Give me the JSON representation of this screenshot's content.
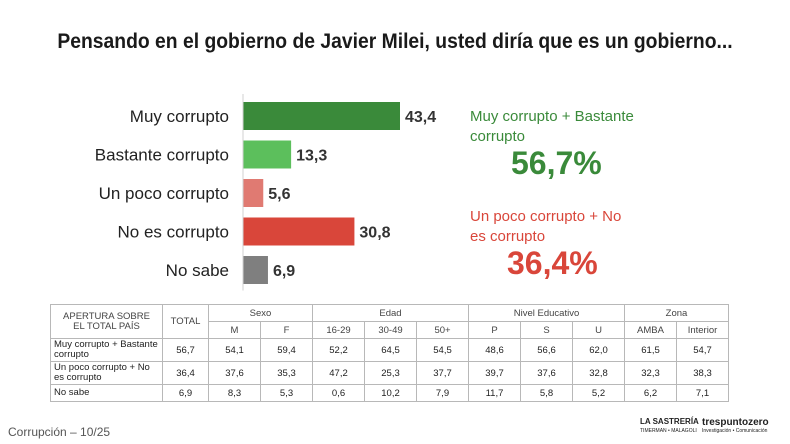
{
  "title": "Pensando en el gobierno de Javier Milei, usted diría que es un gobierno...",
  "chart_data": {
    "type": "bar",
    "orientation": "horizontal",
    "categories": [
      "Muy corrupto",
      "Bastante corrupto",
      "Un poco corrupto",
      "No es corrupto",
      "No sabe"
    ],
    "values": [
      43.4,
      13.3,
      5.6,
      30.8,
      6.9
    ],
    "value_labels": [
      "43,4",
      "13,3",
      "5,6",
      "30,8",
      "6,9"
    ],
    "colors": [
      "#3a8a3a",
      "#5cbf5c",
      "#e07a72",
      "#d9463a",
      "#7f7f7f"
    ],
    "xlim": [
      0,
      50
    ]
  },
  "summary": [
    {
      "label": "Muy corrupto  + Bastante corrupto",
      "value": "56,7%",
      "color": "#3a8a3a"
    },
    {
      "label": "Un poco corrupto + No es corrupto",
      "value": "36,4%",
      "color": "#d9463a"
    }
  ],
  "table": {
    "header_label": "APERTURA SOBRE\nEL TOTAL PAÍS",
    "total_label": "TOTAL",
    "groups": [
      "Sexo",
      "Edad",
      "Nivel Educativo",
      "Zona"
    ],
    "subheaders": [
      "M",
      "F",
      "16-29",
      "30-49",
      "50+",
      "P",
      "S",
      "U",
      "AMBA",
      "Interior"
    ],
    "rows": [
      {
        "label": "Muy corrupto  + Bastante corrupto",
        "cells": [
          "56,7",
          "54,1",
          "59,4",
          "52,2",
          "64,5",
          "54,5",
          "48,6",
          "56,6",
          "62,0",
          "61,5",
          "54,7"
        ]
      },
      {
        "label": "Un poco corrupto + No es corrupto",
        "cells": [
          "36,4",
          "37,6",
          "35,3",
          "47,2",
          "25,3",
          "37,7",
          "39,7",
          "37,6",
          "32,8",
          "32,3",
          "38,3"
        ]
      },
      {
        "label": "No sabe",
        "cells": [
          "6,9",
          "8,3",
          "5,3",
          "0,6",
          "10,2",
          "7,9",
          "11,7",
          "5,8",
          "5,2",
          "6,2",
          "7,1"
        ]
      }
    ]
  },
  "footer": "Corrupción – 10/25",
  "logos": {
    "logo1": "LA SASTRERÍA",
    "logo1_sub": "TIMERMAN • MALAGOLI",
    "logo2": "trespuntozero",
    "logo2_sub": "Investigación • Comunicación"
  }
}
